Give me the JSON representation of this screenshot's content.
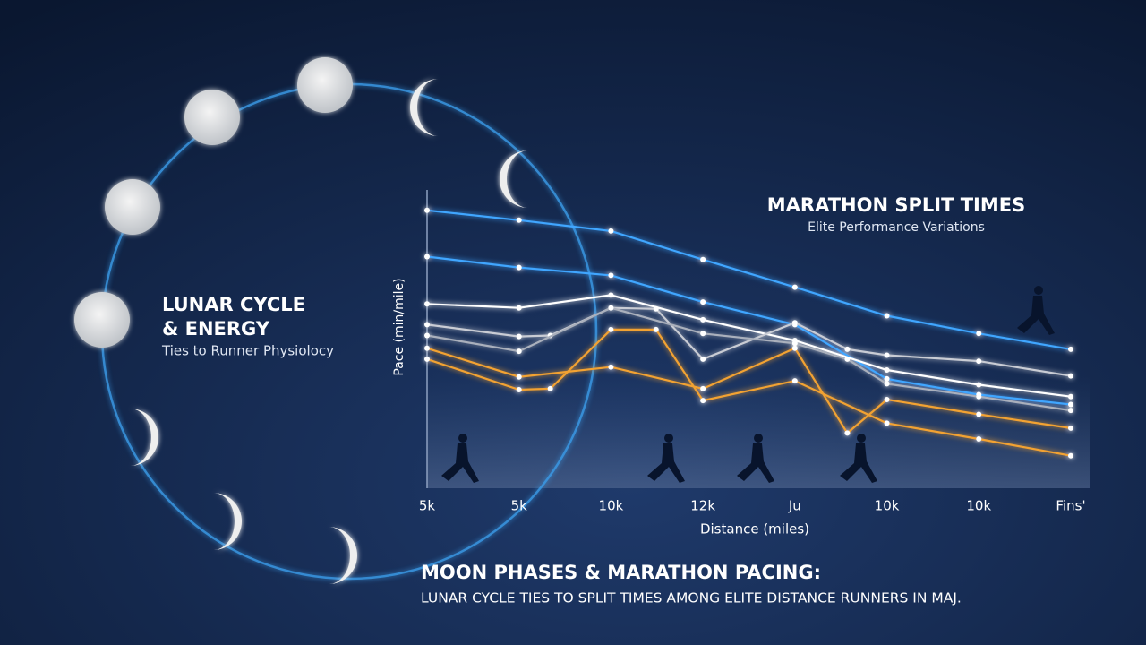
{
  "lunar_panel": {
    "title_line1": "LUNAR CYCLE",
    "title_line2": "& ENERGY",
    "subtitle": "Ties to Runner Physiolocy"
  },
  "footer": {
    "headline": "MOON PHASES & MARATHON PACING:",
    "subheadline": "LUNAR CYCLE TIES TO SPLIT TIMES AMONG ELITE DISTANCE RUNNERS IN MAJ."
  },
  "chart_data": {
    "type": "line",
    "title": "MARATHON SPLIT TIMES",
    "subtitle": "Elite Performance Variations",
    "x_label": "Distance (miles)",
    "y_label": "Pace (min/mile)",
    "xlim": [
      0,
      7
    ],
    "ylim": [
      4,
      7
    ],
    "xticks": [
      {
        "value": 0,
        "label": "5k"
      },
      {
        "value": 1,
        "label": "5k"
      },
      {
        "value": 2,
        "label": "10k"
      },
      {
        "value": 3,
        "label": "12k"
      },
      {
        "value": 4,
        "label": "Ju"
      },
      {
        "value": 5,
        "label": "10k"
      },
      {
        "value": 6,
        "label": "10k"
      },
      {
        "value": 7,
        "label": "Fins'"
      }
    ],
    "series": [
      {
        "color": "#3fa6ff",
        "x": [
          0,
          1,
          2,
          3,
          4,
          5,
          6,
          7
        ],
        "values": [
          6.82,
          6.72,
          6.61,
          6.32,
          6.04,
          5.75,
          5.57,
          5.41
        ]
      },
      {
        "color": "#3fa6ff",
        "x": [
          0,
          1,
          2,
          3,
          4,
          5,
          6,
          7
        ],
        "values": [
          6.35,
          6.24,
          6.16,
          5.89,
          5.66,
          5.11,
          4.95,
          4.85
        ]
      },
      {
        "color": "#ffffff",
        "x": [
          0,
          1,
          2,
          3,
          4,
          5,
          6,
          7
        ],
        "values": [
          5.87,
          5.83,
          5.96,
          5.71,
          5.5,
          5.2,
          5.05,
          4.93
        ]
      },
      {
        "color": "#c9ccd4",
        "x": [
          0,
          1,
          1.34,
          2,
          2.49,
          3,
          4,
          4.57,
          5,
          6,
          7
        ],
        "values": [
          5.66,
          5.54,
          5.55,
          5.83,
          5.82,
          5.31,
          5.68,
          5.41,
          5.35,
          5.29,
          5.14
        ]
      },
      {
        "color": "#aab0bc",
        "x": [
          0,
          1,
          2,
          3,
          4,
          4.57,
          5,
          6,
          7
        ],
        "values": [
          5.55,
          5.39,
          5.83,
          5.57,
          5.47,
          5.31,
          5.06,
          4.93,
          4.79
        ]
      },
      {
        "color": "#f2a231",
        "x": [
          0,
          1,
          2,
          3,
          4,
          4.57,
          5,
          6,
          7
        ],
        "values": [
          5.42,
          5.13,
          5.23,
          5.01,
          5.42,
          4.56,
          4.9,
          4.75,
          4.61
        ]
      },
      {
        "color": "#f2a231",
        "x": [
          0,
          1,
          1.34,
          2,
          2.49,
          3,
          4,
          5,
          6,
          7
        ],
        "values": [
          5.31,
          5.0,
          5.01,
          5.61,
          5.61,
          4.89,
          5.09,
          4.66,
          4.5,
          4.33
        ]
      }
    ]
  }
}
